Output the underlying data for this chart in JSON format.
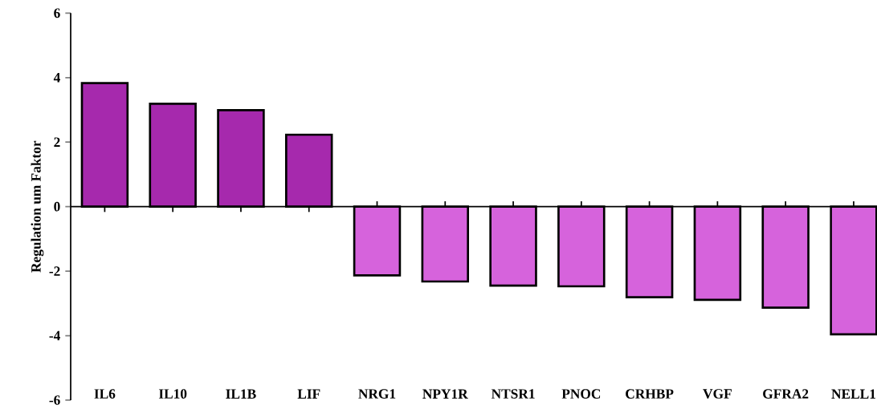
{
  "chart_data": {
    "type": "bar",
    "ylabel": "Regulation um Faktor",
    "categories": [
      "IL6",
      "IL10",
      "IL1B",
      "LIF",
      "NRG1",
      "NPY1R",
      "NTSR1",
      "PNOC",
      "CRHBP",
      "VGF",
      "GFRA2",
      "NELL1"
    ],
    "values": [
      3.83,
      3.19,
      2.99,
      2.23,
      -2.13,
      -2.32,
      -2.45,
      -2.47,
      -2.81,
      -2.89,
      -3.13,
      -3.96
    ],
    "colors": [
      "#a629ad",
      "#a629ad",
      "#a629ad",
      "#a629ad",
      "#d663dc",
      "#d663dc",
      "#d663dc",
      "#d663dc",
      "#d663dc",
      "#d663dc",
      "#d663dc",
      "#d663dc"
    ],
    "ylim": [
      -6,
      6
    ],
    "yticks": [
      -6,
      -4,
      -2,
      0,
      2,
      4,
      6
    ]
  }
}
